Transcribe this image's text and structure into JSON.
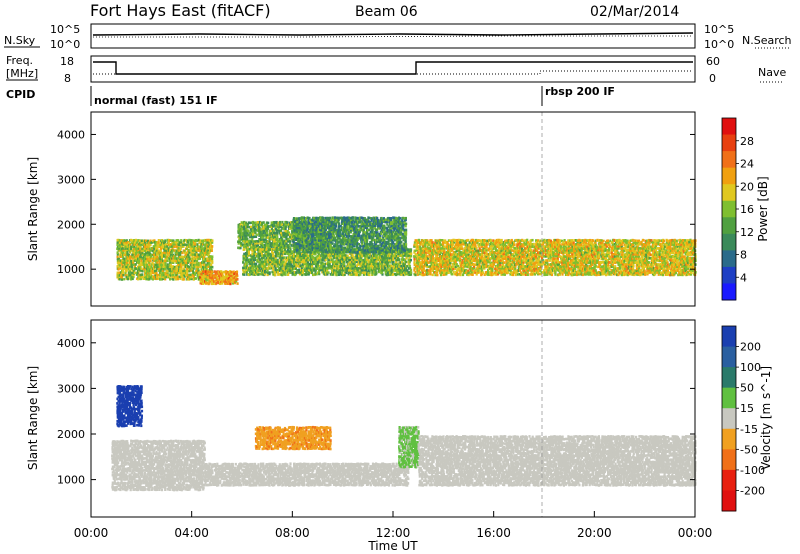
{
  "header": {
    "station": "Fort Hays East (fitACF)",
    "beam": "Beam 06",
    "date": "02/Mar/2014"
  },
  "top_panels": {
    "nsky_label": "N.Sky",
    "nsearch_label": "N.Search",
    "freq_label_1": "Freq.",
    "freq_label_2": "[MHz]",
    "nave_label": "Nave",
    "cpid_label": "CPID",
    "noise_ticks": [
      "10^5",
      "10^0"
    ],
    "freq_ticks": [
      "18",
      "8"
    ],
    "nave_ticks": [
      "60",
      "0"
    ],
    "cpid_modes": [
      {
        "name": "normal (fast) 151 IF",
        "start_hour": 0
      },
      {
        "name": "rbsp 200 IF",
        "start_hour": 18
      }
    ]
  },
  "chart_data": [
    {
      "type": "heatmap",
      "name": "power",
      "ylabel": "Slant Range [km]",
      "xlabel": "",
      "xlim": [
        0,
        24
      ],
      "ylim": [
        180,
        4500
      ],
      "yticks": [
        1000,
        2000,
        3000,
        4000
      ],
      "colorbar": {
        "label": "Power [dB]",
        "ticks": [
          4,
          8,
          12,
          16,
          20,
          24,
          28
        ],
        "colors": [
          "#1a1aff",
          "#1e3fc4",
          "#2a6b8a",
          "#3a8a5a",
          "#50a040",
          "#7fbf30",
          "#e0c820",
          "#f0a010",
          "#f07018",
          "#e84010",
          "#e01010"
        ]
      },
      "bands": [
        {
          "x": [
            1.0,
            4.8
          ],
          "range": [
            800,
            1700
          ],
          "power": 16
        },
        {
          "x": [
            4.3,
            5.8
          ],
          "range": [
            700,
            1000
          ],
          "power": 21
        },
        {
          "x": [
            5.8,
            9.5
          ],
          "range": [
            1500,
            2100
          ],
          "power": 13
        },
        {
          "x": [
            6.0,
            12.7
          ],
          "range": [
            900,
            1500
          ],
          "power": 14
        },
        {
          "x": [
            8.0,
            12.5
          ],
          "range": [
            1400,
            2200
          ],
          "power": 10
        },
        {
          "x": [
            12.8,
            24.0
          ],
          "range": [
            900,
            1700
          ],
          "power": 18
        }
      ]
    },
    {
      "type": "heatmap",
      "name": "velocity",
      "ylabel": "Slant Range [km]",
      "xlabel": "Time UT",
      "xlim": [
        0,
        24
      ],
      "ylim": [
        180,
        4500
      ],
      "yticks": [
        1000,
        2000,
        3000,
        4000
      ],
      "xticks": [
        "00:00",
        "04:00",
        "08:00",
        "12:00",
        "16:00",
        "20:00",
        "00:00"
      ],
      "colorbar": {
        "label": "Velocity [m s^-1]",
        "ticks": [
          200,
          100,
          50,
          15,
          -15,
          -50,
          -100,
          -200
        ],
        "colors": [
          "#1a3fb0",
          "#2a5fa0",
          "#2a7a6a",
          "#60c040",
          "#c8c8c0",
          "#f0a020",
          "#f07018",
          "#e82010",
          "#e01010"
        ]
      },
      "bands": [
        {
          "x": [
            0.8,
            4.5
          ],
          "range": [
            800,
            1900
          ],
          "velocity": 0
        },
        {
          "x": [
            4.5,
            12.6
          ],
          "range": [
            900,
            1400
          ],
          "velocity": 0
        },
        {
          "x": [
            6.5,
            9.5
          ],
          "range": [
            1700,
            2200
          ],
          "velocity": -30
        },
        {
          "x": [
            12.2,
            13.0
          ],
          "range": [
            1300,
            2200
          ],
          "velocity": 40
        },
        {
          "x": [
            13.0,
            24.0
          ],
          "range": [
            900,
            2000
          ],
          "velocity": 0
        },
        {
          "x": [
            1.0,
            2.0
          ],
          "range": [
            2200,
            3100
          ],
          "velocity": 200
        }
      ]
    }
  ]
}
